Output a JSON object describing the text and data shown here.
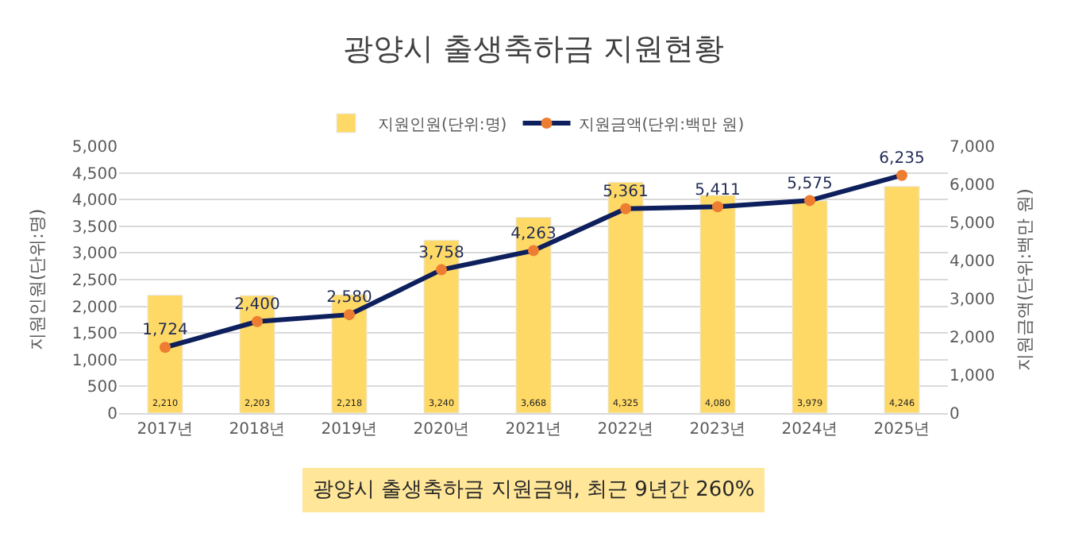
{
  "chart_data": {
    "type": "bar",
    "title": "광양시 출생축하금 지원현황",
    "categories": [
      "2017년",
      "2018년",
      "2019년",
      "2020년",
      "2021년",
      "2022년",
      "2023년",
      "2024년",
      "2025년"
    ],
    "series": [
      {
        "name": "지원인원(단위:명)",
        "color": "#ffd966",
        "values": [
          2210,
          2203,
          2218,
          3240,
          3668,
          4325,
          4080,
          3979,
          4246
        ],
        "value_labels": [
          "2,210",
          "2,203",
          "2,218",
          "3,240",
          "3,668",
          "4,325",
          "4,080",
          "3,979",
          "4,246"
        ]
      },
      {
        "name": "지원금액(단위:백만 원)",
        "type": "line",
        "axis": "y2",
        "color": "#0d1f5c",
        "colors": [
          "#ed7d31",
          "#ed7d31",
          "#ed7d31",
          "#ed7d31",
          "#ed7d31",
          "#ed7d31",
          "#ed7d31",
          "#ed7d31",
          "#ed7d31"
        ],
        "values": [
          1724,
          2400,
          2580,
          3758,
          4263,
          5361,
          5411,
          5575,
          6235
        ],
        "value_labels": [
          "1,724",
          "2,400",
          "2,580",
          "3,758",
          "4,263",
          "5,361",
          "5,411",
          "5,575",
          "6,235"
        ]
      }
    ],
    "ylabel": "지원인원(단위:명)",
    "y2label": "지원금액(단위:백만 원)",
    "ylim": [
      0,
      5000
    ],
    "yticks": [
      0,
      500,
      {
        "value": 1000,
        "label": "1,000"
      },
      {
        "value": 1500,
        "label": "1,500"
      },
      {
        "value": 2000,
        "label": "2,000"
      },
      {
        "value": 2500,
        "label": "2,500"
      },
      {
        "value": 3000,
        "label": "3,000"
      },
      {
        "value": 3500,
        "label": "3,500"
      },
      {
        "value": 4000,
        "label": "4,000"
      },
      {
        "value": 4500,
        "label": "4,500"
      },
      {
        "value": 5000,
        "label": "5,000"
      }
    ],
    "y2lim": [
      0,
      7000
    ],
    "y2ticks": [
      0,
      {
        "value": 1000,
        "label": "1,000"
      },
      {
        "value": 2000,
        "label": "2,000"
      },
      {
        "value": 3000,
        "label": "3,000"
      },
      {
        "value": 4000,
        "label": "4,000"
      },
      {
        "value": 5000,
        "label": "5,000"
      },
      {
        "value": 6000,
        "label": "6,000"
      },
      {
        "value": 7000,
        "label": "7,000"
      }
    ],
    "grid": "y",
    "legend": "top",
    "marker": "circle",
    "line_style": "solid",
    "annotations": [
      "광양시 출생축하금 지원금액, 최근 9년간 260%"
    ]
  }
}
